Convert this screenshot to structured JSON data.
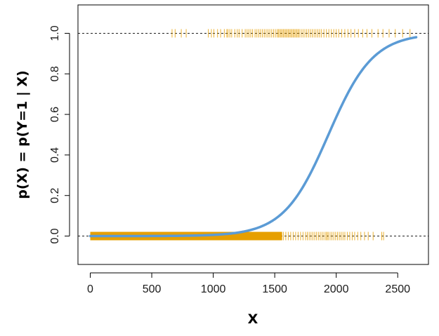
{
  "chart_data": {
    "type": "scatter",
    "title": "",
    "xlabel": "X",
    "ylabel": "p(X) = p(Y=1 | X)",
    "xlim": [
      -100,
      2750
    ],
    "ylim": [
      -0.14,
      1.14
    ],
    "x_ticks": [
      0,
      500,
      1000,
      1500,
      2000,
      2500
    ],
    "x_tick_labels": [
      "0",
      "500",
      "1000",
      "1500",
      "2000",
      "2500"
    ],
    "y_ticks": [
      0.0,
      0.2,
      0.4,
      0.6,
      0.8,
      1.0
    ],
    "y_tick_labels": [
      "0.0",
      "0.2",
      "0.4",
      "0.6",
      "0.8",
      "1.0"
    ],
    "grid": false,
    "reference_lines": [
      {
        "y": 0.0,
        "style": "dashed"
      },
      {
        "y": 1.0,
        "style": "dashed"
      }
    ],
    "series": [
      {
        "kind": "rug-points",
        "y": 0,
        "color": "#E69F00",
        "dense_ranges": [
          [
            0,
            1560
          ]
        ],
        "x": [
          1570,
          1590,
          1610,
          1630,
          1650,
          1670,
          1690,
          1710,
          1730,
          1750,
          1765,
          1780,
          1795,
          1810,
          1825,
          1840,
          1855,
          1870,
          1885,
          1900,
          1915,
          1925,
          1935,
          1950,
          1965,
          1980,
          1995,
          2010,
          2025,
          2040,
          2055,
          2070,
          2090,
          2110,
          2130,
          2150,
          2175,
          2200,
          2230,
          2260,
          2300,
          2370,
          2385
        ]
      },
      {
        "kind": "rug-points",
        "y": 1,
        "color": "#E69F00",
        "x": [
          665,
          690,
          740,
          780,
          960,
          985,
          1005,
          1035,
          1060,
          1090,
          1110,
          1120,
          1135,
          1150,
          1175,
          1195,
          1210,
          1235,
          1260,
          1275,
          1290,
          1305,
          1320,
          1340,
          1355,
          1370,
          1385,
          1400,
          1415,
          1430,
          1445,
          1460,
          1475,
          1490,
          1505,
          1520,
          1530,
          1540,
          1550,
          1560,
          1570,
          1580,
          1590,
          1600,
          1610,
          1620,
          1630,
          1640,
          1650,
          1660,
          1670,
          1680,
          1690,
          1700,
          1715,
          1730,
          1745,
          1760,
          1775,
          1790,
          1805,
          1820,
          1835,
          1850,
          1865,
          1880,
          1900,
          1920,
          1940,
          1960,
          1980,
          2000,
          2020,
          2045,
          2070,
          2095,
          2120,
          2150,
          2180,
          2215,
          2250,
          2290,
          2340,
          2380,
          2430,
          2480,
          2540,
          2600
        ]
      },
      {
        "kind": "fitted-curve",
        "name": "",
        "color": "#5B9BD5",
        "model": "logistic",
        "intercept": -10.6513,
        "slope": 0.0055
      }
    ]
  }
}
